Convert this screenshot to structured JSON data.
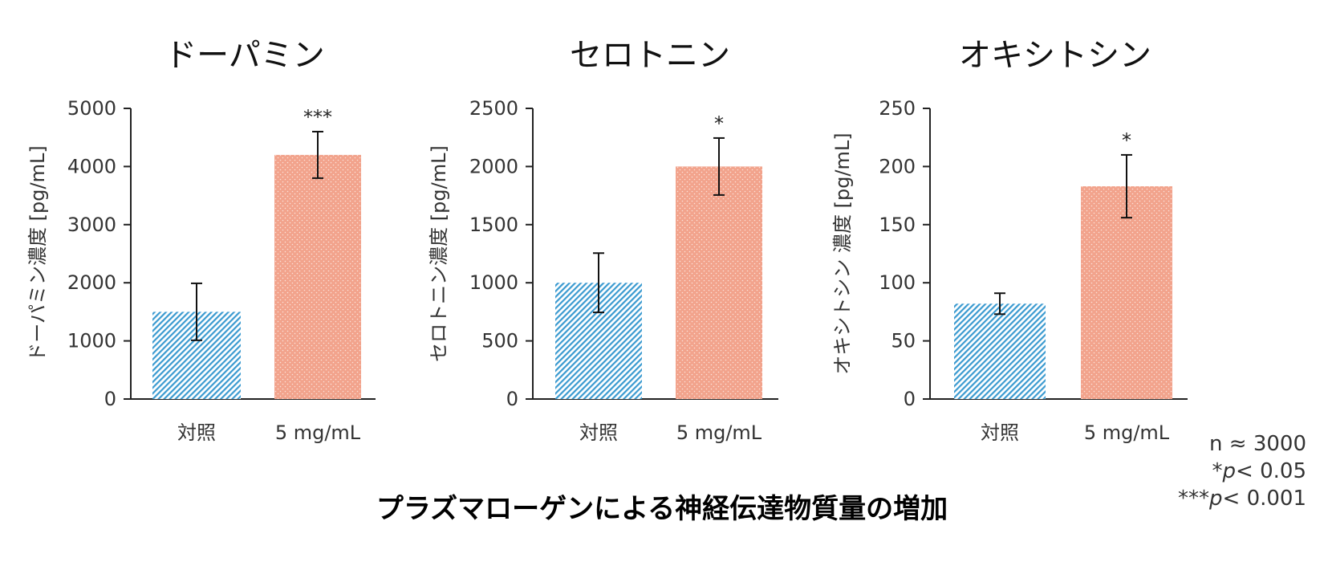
{
  "colors": {
    "control": "#3a9ad0",
    "treated": "#f2a38c",
    "axis": "#222222"
  },
  "main_title": "プラズマローゲンによる神経伝達物質量の増加",
  "notes": {
    "n": "n ≈ 3000",
    "sig1_stars": "*",
    "sig1_p": "p",
    "sig1_rest": "< 0.05",
    "sig3_stars": "***",
    "sig3_p": "p",
    "sig3_rest": "< 0.001"
  },
  "chart_data": [
    {
      "type": "bar",
      "title": "ドーパミン",
      "ylabel": "ドーパミン濃度 [pg/mL]",
      "xlabel": "",
      "categories": [
        "対照",
        "5 mg/mL"
      ],
      "values": [
        1500,
        4200
      ],
      "errors": [
        490,
        400
      ],
      "significance": [
        "",
        "***"
      ],
      "ylim": [
        0,
        5000
      ],
      "yticks": [
        0,
        1000,
        2000,
        3000,
        4000,
        5000
      ],
      "grid": false
    },
    {
      "type": "bar",
      "title": "セロトニン",
      "ylabel": "セロトニン濃度 [pg/mL]",
      "xlabel": "",
      "categories": [
        "対照",
        "5 mg/mL"
      ],
      "values": [
        1000,
        2000
      ],
      "errors": [
        255,
        245
      ],
      "significance": [
        "",
        "*"
      ],
      "ylim": [
        0,
        2500
      ],
      "yticks": [
        0,
        500,
        1000,
        1500,
        2000,
        2500
      ],
      "grid": false
    },
    {
      "type": "bar",
      "title": "オキシトシン",
      "ylabel": "オキシトシン 濃度 [pg/mL]",
      "xlabel": "",
      "categories": [
        "対照",
        "5 mg/mL"
      ],
      "values": [
        82,
        183
      ],
      "errors": [
        9,
        27
      ],
      "significance": [
        "",
        "*"
      ],
      "ylim": [
        0,
        250
      ],
      "yticks": [
        0,
        50,
        100,
        150,
        200,
        250
      ],
      "grid": false
    }
  ]
}
